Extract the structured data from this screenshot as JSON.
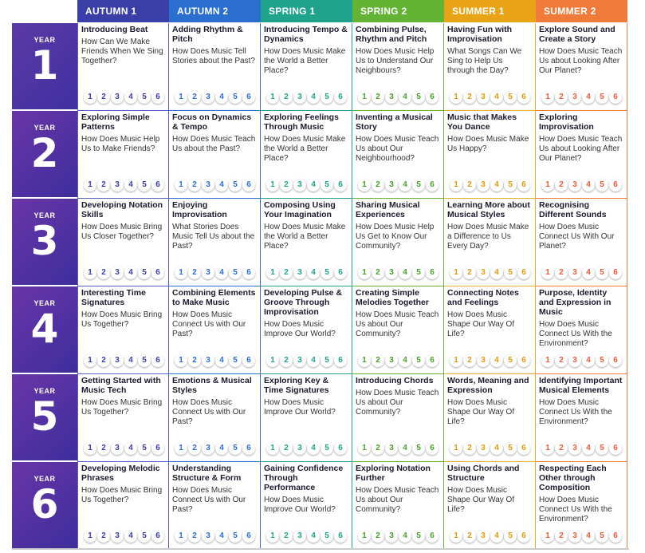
{
  "terms": [
    {
      "label": "AUTUMN 1",
      "color": "#3a3fa8",
      "border": "#5a5fc8",
      "num_color": "#3a3fa8"
    },
    {
      "label": "AUTUMN 2",
      "color": "#2a6fcf",
      "border": "#2a6fcf",
      "num_color": "#2a6fcf"
    },
    {
      "label": "SPRING 1",
      "color": "#1fa38c",
      "border": "#1fa38c",
      "num_color": "#1fa38c"
    },
    {
      "label": "SPRING 2",
      "color": "#63b335",
      "border": "#63b335",
      "num_color": "#4a9f2a"
    },
    {
      "label": "SUMMER 1",
      "color": "#e8a416",
      "border": "#e8b020",
      "num_color": "#e09a10"
    },
    {
      "label": "SUMMER 2",
      "color": "#f07a3a",
      "border": "#f07a3a",
      "num_color": "#ec5a3a"
    }
  ],
  "year_label": "YEAR",
  "unit_numbers": [
    "1",
    "2",
    "3",
    "4",
    "5",
    "6"
  ],
  "years": [
    {
      "number": "1",
      "units": [
        {
          "title": "Introducing Beat",
          "question": "How Can We Make Friends When We Sing Together?"
        },
        {
          "title": "Adding Rhythm & Pitch",
          "question": "How Does Music Tell Stories about the Past?"
        },
        {
          "title": "Introducing Tempo & Dynamics",
          "question": "How Does Music Make the World a Better Place?"
        },
        {
          "title": "Combining Pulse, Rhythm and Pitch",
          "question": "How Does Music Help Us to Understand Our Neighbours?"
        },
        {
          "title": "Having Fun with Improvisation",
          "question": "What Songs Can We Sing to Help Us through the Day?"
        },
        {
          "title": "Explore Sound and Create a Story",
          "question": "How Does Music Teach Us about Looking After Our Planet?"
        }
      ]
    },
    {
      "number": "2",
      "units": [
        {
          "title": "Exploring Simple Patterns",
          "question": "How Does Music Help Us to Make Friends?"
        },
        {
          "title": "Focus on Dynamics & Tempo",
          "question": "How Does Music Teach Us about the Past?"
        },
        {
          "title": "Exploring Feelings Through Music",
          "question": "How Does Music Make the World a Better Place?"
        },
        {
          "title": "Inventing a Musical Story",
          "question": "How Does Music Teach Us about Our Neighbourhood?"
        },
        {
          "title": "Music that Makes You Dance",
          "question": "How Does Music Make Us Happy?"
        },
        {
          "title": "Exploring Improvisation",
          "question": "How Does Music Teach Us about Looking After Our Planet?"
        }
      ]
    },
    {
      "number": "3",
      "units": [
        {
          "title": "Developing Notation Skills",
          "question": "How Does Music Bring Us Closer Together?"
        },
        {
          "title": "Enjoying Improvisation",
          "question": "What Stories Does Music Tell Us about the Past?"
        },
        {
          "title": "Composing Using Your Imagination",
          "question": "How Does Music Make the World a Better Place?"
        },
        {
          "title": "Sharing Musical Experiences",
          "question": "How Does Music Help Us Get to Know Our Community?"
        },
        {
          "title": "Learning More about Musical Styles",
          "question": "How Does Music Make a Difference to Us Every Day?"
        },
        {
          "title": "Recognising Different Sounds",
          "question": "How Does Music Connect Us With Our Planet?"
        }
      ]
    },
    {
      "number": "4",
      "units": [
        {
          "title": "Interesting Time Signatures",
          "question": "How Does Music Bring Us Together?"
        },
        {
          "title": "Combining Elements to Make Music",
          "question": "How Does Music Connect Us with Our Past?"
        },
        {
          "title": "Developing Pulse & Groove Through Improvisation",
          "question": "How Does Music Improve Our World?"
        },
        {
          "title": "Creating Simple Melodies Together",
          "question": "How Does Music Teach Us about Our Community?"
        },
        {
          "title": "Connecting Notes and Feelings",
          "question": "How Does Music Shape Our Way Of Life?"
        },
        {
          "title": "Purpose, Identity and Expression in Music",
          "question": "How Does Music Connect Us With the Environment?"
        }
      ]
    },
    {
      "number": "5",
      "units": [
        {
          "title": "Getting Started with Music Tech",
          "question": "How Does Music Bring Us Together?"
        },
        {
          "title": "Emotions & Musical Styles",
          "question": "How Does Music Connect Us with Our Past?"
        },
        {
          "title": "Exploring Key & Time Signatures",
          "question": "How Does Music Improve Our World?"
        },
        {
          "title": "Introducing Chords",
          "question": "How Does Music Teach Us about Our Community?"
        },
        {
          "title": "Words, Meaning and Expression",
          "question": "How Does Music Shape Our Way Of Life?"
        },
        {
          "title": "Identifying Important Musical Elements",
          "question": "How Does Music Connect Us With the Environment?"
        }
      ]
    },
    {
      "number": "6",
      "units": [
        {
          "title": "Developing Melodic Phrases",
          "question": "How Does Music Bring Us Together?"
        },
        {
          "title": "Understanding Structure & Form",
          "question": "How Does Music Connect Us with Our Past?"
        },
        {
          "title": "Gaining Confidence Through Performance",
          "question": "How Does Music Improve Our World?"
        },
        {
          "title": "Exploring Notation Further",
          "question": "How Does Music Teach Us about Our Community?"
        },
        {
          "title": "Using Chords and Structure",
          "question": "How Does Music Shape Our Way Of Life?"
        },
        {
          "title": "Respecting Each Other through Composition",
          "question": "How Does Music Connect Us With the Environment?"
        }
      ]
    }
  ]
}
